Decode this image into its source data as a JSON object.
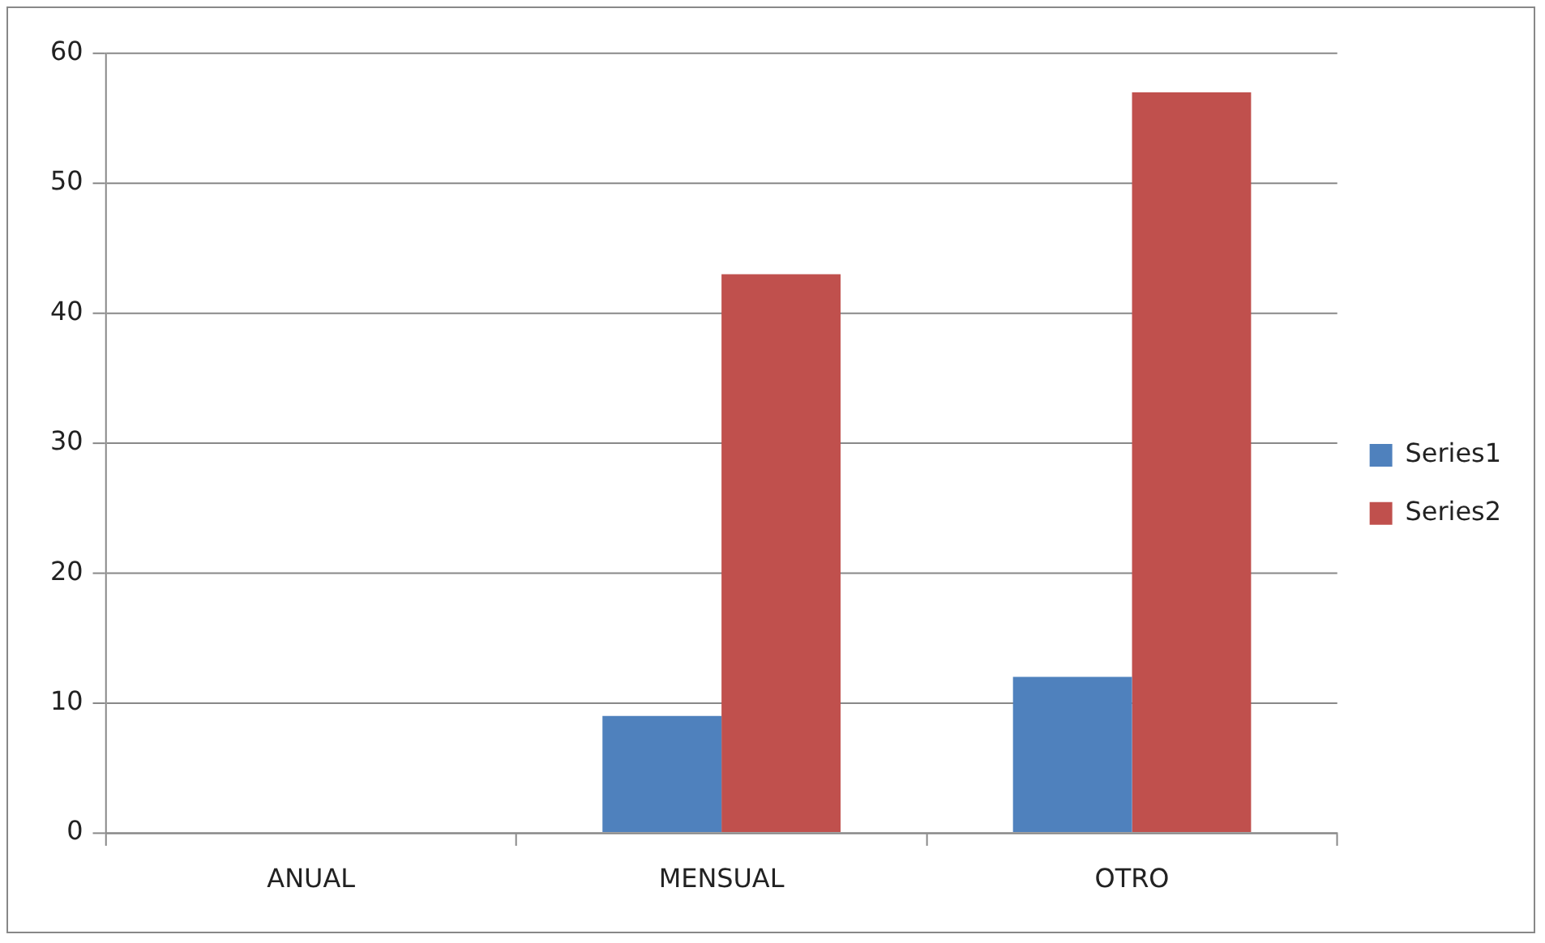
{
  "chart_data": {
    "type": "bar",
    "categories": [
      "ANUAL",
      "MENSUAL",
      "OTRO"
    ],
    "series": [
      {
        "name": "Series1",
        "color": "#4f81bd",
        "values": [
          0,
          9,
          12
        ]
      },
      {
        "name": "Series2",
        "color": "#c0504d",
        "values": [
          0,
          43,
          57
        ]
      }
    ],
    "ylim": [
      0,
      60
    ],
    "yticks": [
      0,
      10,
      20,
      30,
      40,
      50,
      60
    ],
    "grid": "y",
    "legend": "right"
  }
}
